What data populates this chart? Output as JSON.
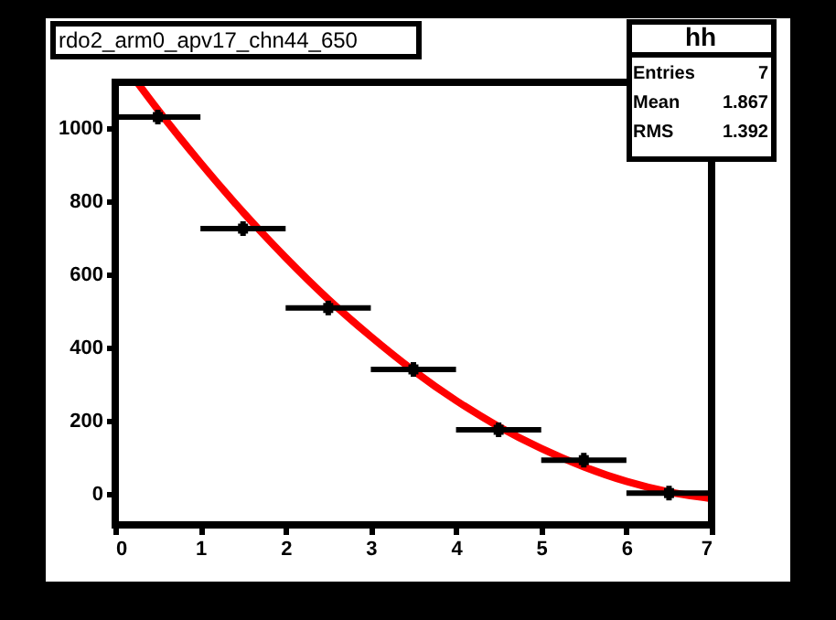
{
  "chart_data": {
    "type": "scatter",
    "title": "rdo2_arm0_apv17_chn44_650",
    "xlim": [
      0,
      7
    ],
    "xticks": [
      0,
      1,
      2,
      3,
      4,
      5,
      6,
      7
    ],
    "ylim": [
      -85,
      1125
    ],
    "yticks": [
      0,
      200,
      400,
      600,
      800,
      1000
    ],
    "grid": false,
    "annotations": [
      "hh",
      "Entries 7",
      "Mean 1.867",
      "RMS 1.392"
    ],
    "series": [
      {
        "marker": "square",
        "color": "#000000",
        "x": [
          0.5,
          1.5,
          2.5,
          3.5,
          4.5,
          5.5,
          6.5
        ],
        "values": [
          1030,
          725,
          508,
          340,
          175,
          92,
          2
        ],
        "xerrors": [
          0.5,
          0.5,
          0.5,
          0.5,
          0.5,
          0.5,
          0.5
        ],
        "errors": [
          20,
          20,
          20,
          20,
          20,
          20,
          20
        ]
      },
      {
        "type": "line",
        "color": "#ff0000",
        "x": [
          0.26,
          0.5,
          1,
          1.5,
          2,
          2.5,
          3,
          3.5,
          4,
          4.5,
          5,
          5.5,
          6,
          6.5,
          7
        ],
        "values": [
          1124,
          1050,
          905,
          770,
          646,
          532,
          430,
          337,
          255,
          184,
          124,
          74,
          34,
          5,
          -13
        ]
      }
    ]
  }
}
